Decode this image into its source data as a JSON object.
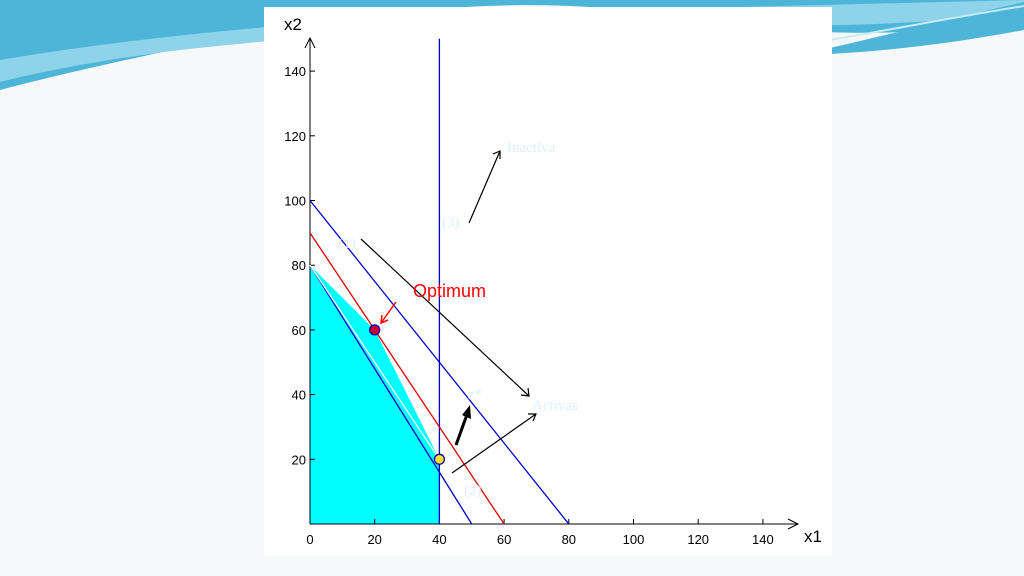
{
  "slide": {
    "background_color": "#f7f8f9",
    "wave_colors": [
      "#4db6d8",
      "#8fd3ea",
      "#c7ecf6"
    ]
  },
  "chart_data": {
    "type": "line",
    "xlabel": "x1",
    "ylabel": "x2",
    "xlim": [
      0,
      150
    ],
    "ylim": [
      0,
      150
    ],
    "x_ticks": [
      "0",
      "20",
      "40",
      "60",
      "80",
      "100",
      "120",
      "140"
    ],
    "y_ticks": [
      "20",
      "40",
      "60",
      "80",
      "100",
      "120",
      "140"
    ],
    "x_tick_values": [
      0,
      20,
      40,
      60,
      80,
      100,
      120,
      140
    ],
    "y_tick_values": [
      20,
      40,
      60,
      80,
      100,
      120,
      140
    ],
    "feasible_region": {
      "color": "#00ffff",
      "points": [
        [
          0,
          0
        ],
        [
          0,
          80
        ],
        [
          20,
          60
        ],
        [
          40,
          20
        ],
        [
          40,
          0
        ]
      ]
    },
    "series": [
      {
        "color": "#0000cc",
        "points": [
          [
            0,
            100
          ],
          [
            80,
            0
          ]
        ]
      },
      {
        "color": "#0000cc",
        "points": [
          [
            0,
            80
          ],
          [
            50,
            0
          ]
        ]
      },
      {
        "color": "#0000cc",
        "points": [
          [
            40,
            0
          ],
          [
            40,
            150
          ]
        ]
      },
      {
        "color": "#dd0000",
        "points": [
          [
            0,
            90
          ],
          [
            60,
            0
          ]
        ]
      },
      {
        "color": "#ffffff",
        "points": [
          [
            0,
            80
          ],
          [
            40,
            20
          ]
        ]
      }
    ],
    "points": [
      {
        "x": 20,
        "y": 60,
        "fill": "#cc0033",
        "stroke": "#0000aa"
      },
      {
        "x": 40,
        "y": 20,
        "fill": "#ffdd33",
        "stroke": "#0000aa"
      }
    ],
    "annotations": {
      "inactiva": "Inactiva",
      "label_3": "(3)",
      "label_1": "(1)",
      "optimum": "Optimum",
      "activas": "Activas",
      "z_star": "z*",
      "label_2": "(2)",
      "annotation_color": "#ddeff8",
      "optimum_color": "#ff0000"
    }
  }
}
